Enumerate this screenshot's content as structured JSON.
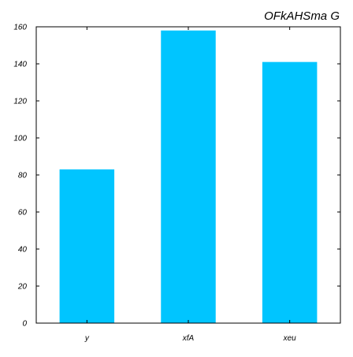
{
  "chart_data": {
    "type": "bar",
    "title": "OFkAHSma G",
    "xlabel": "",
    "ylabel": "",
    "categories": [
      "y",
      "xfA",
      "xeu"
    ],
    "values": [
      83,
      158,
      141
    ],
    "ylim": [
      0,
      160
    ],
    "yticks": [
      "0",
      "20",
      "40",
      "60",
      "80",
      "100",
      "120",
      "140",
      "160"
    ],
    "grid": false,
    "legend": "none",
    "bar_color": "#00c5ff"
  }
}
